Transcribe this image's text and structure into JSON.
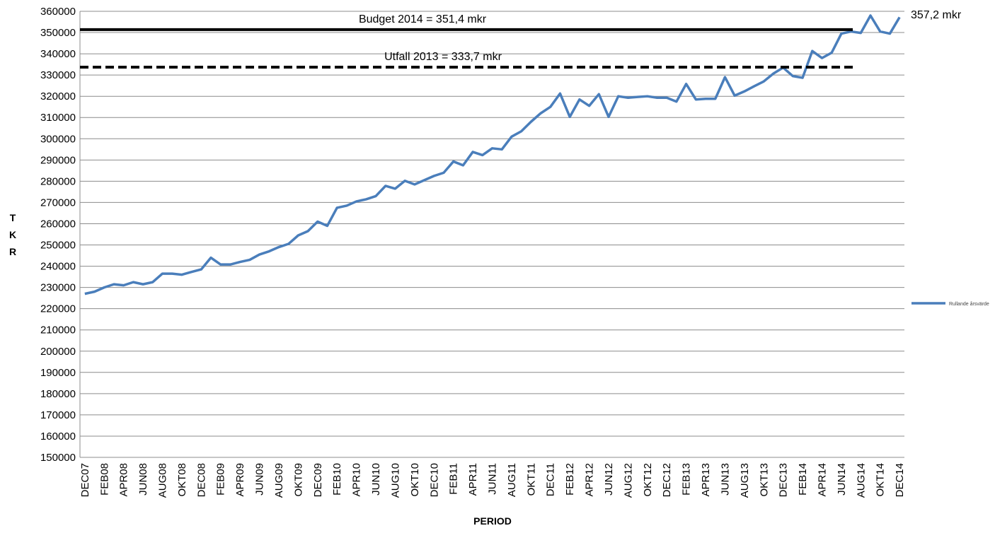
{
  "chart_data": {
    "type": "line",
    "x_label": "PERIOD",
    "y_label": "TKR",
    "categories": [
      "DEC07",
      null,
      "FEB08",
      null,
      "APR08",
      null,
      "JUN08",
      null,
      "AUG08",
      null,
      "OKT08",
      null,
      "DEC08",
      null,
      "FEB09",
      null,
      "APR09",
      null,
      "JUN09",
      null,
      "AUG09",
      null,
      "OKT09",
      null,
      "DEC09",
      null,
      "FEB10",
      null,
      "APR10",
      null,
      "JUN10",
      null,
      "AUG10",
      null,
      "OKT10",
      null,
      "DEC10",
      null,
      "FEB11",
      null,
      "APR11",
      null,
      "JUN11",
      null,
      "AUG11",
      null,
      "OKT11",
      null,
      "DEC11",
      null,
      "FEB12",
      null,
      "APR12",
      null,
      "JUN12",
      null,
      "AUG12",
      null,
      "OKT12",
      null,
      "DEC12",
      null,
      "FEB13",
      null,
      "APR13",
      null,
      "JUN13",
      null,
      "AUG13",
      null,
      "OKT13",
      null,
      "DEC13",
      null,
      "FEB14",
      null,
      "APR14",
      null,
      "JUN14",
      null,
      "AUG14",
      null,
      "OKT14",
      null,
      "DEC14"
    ],
    "series": [
      {
        "name": "Rullande årsvärde",
        "color": "#4a7ebb",
        "values": [
          227000,
          228000,
          230000,
          231500,
          231000,
          232500,
          231500,
          232500,
          236500,
          236500,
          236000,
          237300,
          238500,
          244000,
          240800,
          240800,
          242000,
          243000,
          245500,
          247000,
          249000,
          250500,
          254500,
          256500,
          261000,
          259000,
          267500,
          268500,
          270500,
          271500,
          273000,
          277800,
          276500,
          280200,
          278500,
          280500,
          282500,
          284000,
          289300,
          287500,
          293800,
          292300,
          295500,
          295000,
          301000,
          303500,
          308000,
          312000,
          315000,
          321300,
          310300,
          318500,
          315500,
          321000,
          310300,
          320000,
          319300,
          319700,
          320000,
          319300,
          319300,
          317500,
          325800,
          318500,
          318800,
          318800,
          329000,
          320300,
          322300,
          324700,
          327000,
          330700,
          333500,
          329500,
          328700,
          341300,
          338000,
          340500,
          349500,
          350500,
          349800,
          358000,
          350500,
          349500,
          357200
        ]
      }
    ],
    "reference_lines": [
      {
        "label": "Budget 2014 = 351,4 mkr",
        "value": 351400,
        "style": "solid",
        "color": "#000000"
      },
      {
        "label": "Utfall 2013 = 333,7 mkr",
        "value": 333700,
        "style": "dashed",
        "color": "#000000"
      }
    ],
    "annotations": [
      "357,2 mkr"
    ],
    "ylim": [
      150000,
      360000
    ],
    "yticks": [
      150000,
      160000,
      170000,
      180000,
      190000,
      200000,
      210000,
      220000,
      230000,
      240000,
      250000,
      260000,
      270000,
      280000,
      290000,
      300000,
      310000,
      320000,
      330000,
      340000,
      350000,
      360000
    ],
    "grid": true,
    "legend": "right"
  }
}
